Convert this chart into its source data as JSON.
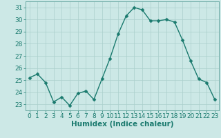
{
  "x": [
    0,
    1,
    2,
    3,
    4,
    5,
    6,
    7,
    8,
    9,
    10,
    11,
    12,
    13,
    14,
    15,
    16,
    17,
    18,
    19,
    20,
    21,
    22,
    23
  ],
  "y": [
    25.2,
    25.5,
    24.8,
    23.2,
    23.6,
    22.9,
    23.9,
    24.1,
    23.4,
    25.1,
    26.8,
    28.8,
    30.3,
    31.0,
    30.8,
    29.9,
    29.9,
    30.0,
    29.8,
    28.3,
    26.6,
    25.1,
    24.8,
    23.4
  ],
  "xlabel": "Humidex (Indice chaleur)",
  "ylim": [
    22.5,
    31.5
  ],
  "xlim": [
    -0.5,
    23.5
  ],
  "yticks": [
    23,
    24,
    25,
    26,
    27,
    28,
    29,
    30,
    31
  ],
  "xticks": [
    0,
    1,
    2,
    3,
    4,
    5,
    6,
    7,
    8,
    9,
    10,
    11,
    12,
    13,
    14,
    15,
    16,
    17,
    18,
    19,
    20,
    21,
    22,
    23
  ],
  "line_color": "#1a7a6e",
  "marker_color": "#1a7a6e",
  "bg_color": "#cce8e6",
  "grid_color": "#aacfcc",
  "xlabel_color": "#1a7a6e",
  "tick_color": "#1a7a6e",
  "spine_color": "#5a9e98",
  "marker_size": 2.5,
  "line_width": 1.0,
  "xlabel_fontsize": 7.5,
  "tick_fontsize": 6.5
}
